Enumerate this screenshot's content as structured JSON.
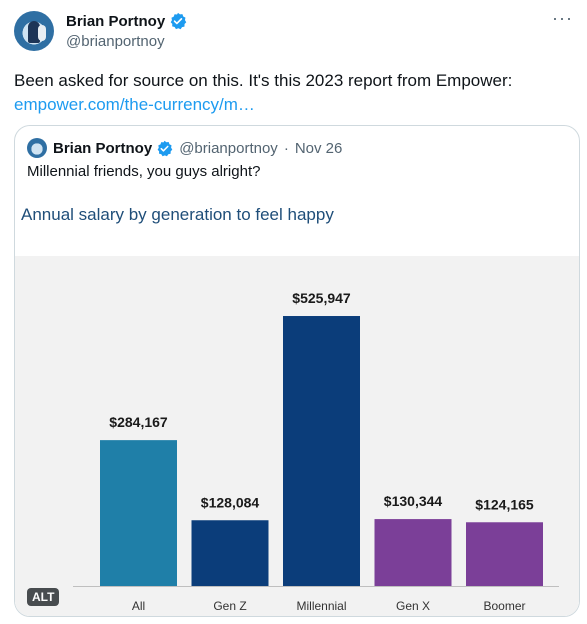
{
  "tweet": {
    "author_name": "Brian Portnoy",
    "author_handle": "@brianportnoy",
    "more_glyph": "···",
    "text": "Been asked for source on this. It's this 2023 report from Empower:",
    "link": "empower.com/the-currency/m…"
  },
  "quote": {
    "author_name": "Brian Portnoy",
    "author_handle": "@brianportnoy",
    "separator": "·",
    "date": "Nov 26",
    "text": "Millennial friends, you guys alright?",
    "alt_label": "ALT"
  },
  "colors": {
    "verified": "#1d9bf0",
    "link": "#1d9bf0",
    "title": "#1f4e79"
  },
  "icons": {
    "verified": "verified-badge-icon",
    "more": "more-icon"
  },
  "chart_data": {
    "type": "bar",
    "title": "Annual salary by generation to feel happy",
    "categories": [
      "All",
      "Gen Z",
      "Millennial",
      "Gen X",
      "Boomer"
    ],
    "values": [
      284167,
      128084,
      525947,
      130344,
      124165
    ],
    "value_labels": [
      "$284,167",
      "$128,084",
      "$525,947",
      "$130,344",
      "$124,165"
    ],
    "bar_colors": [
      "#1f7fa8",
      "#0b3d7a",
      "#0b3d7a",
      "#7b3f98",
      "#7b3f98"
    ],
    "ylim": [
      0,
      600000
    ],
    "grid": false,
    "xlabel": "",
    "ylabel": ""
  }
}
